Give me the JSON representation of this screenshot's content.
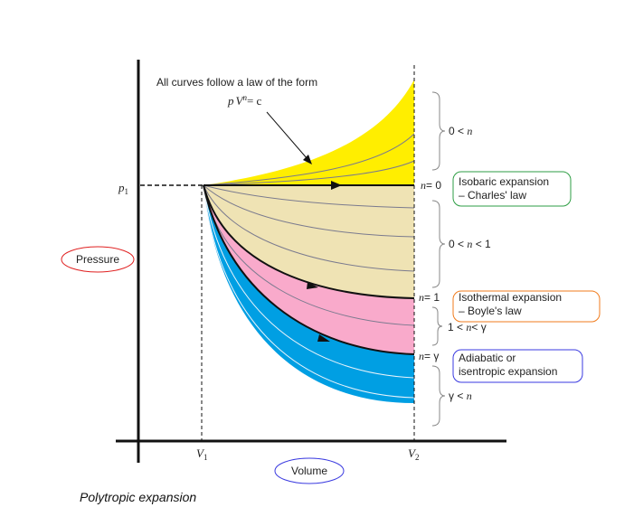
{
  "caption": "Polytropic expansion",
  "law_note": {
    "line1": "All curves follow a law of the form",
    "formula_p": "p",
    "formula_V": "V",
    "formula_exp": "n",
    "formula_eq": "= c"
  },
  "axes": {
    "y_label": "Pressure",
    "x_label": "Volume",
    "p1": {
      "base": "p",
      "sub": "1"
    },
    "v1": {
      "base": "V",
      "sub": "1"
    },
    "v2": {
      "base": "V",
      "sub": "2"
    }
  },
  "exponent_labels": {
    "n0": {
      "var": "n",
      "rest": "= 0"
    },
    "n1": {
      "var": "n",
      "rest": "= 1"
    },
    "ngamma": {
      "var": "n",
      "rest": "= γ"
    }
  },
  "ranges": {
    "r1": {
      "a": "0 < ",
      "var": "n",
      "b": ""
    },
    "r2": {
      "a": "0 < ",
      "var": "n",
      "b": " < 1"
    },
    "r3": {
      "a": "1 < ",
      "var": "n",
      "b": "< γ"
    },
    "r4": {
      "a": "γ < ",
      "var": "n",
      "b": ""
    }
  },
  "boxes": {
    "isobaric": {
      "line1": "Isobaric expansion",
      "line2": "– Charles' law",
      "color": "#2e9e44"
    },
    "isothermal": {
      "line1": "Isothermal expansion",
      "line2": "– Boyle's law",
      "color": "#f07b1c"
    },
    "adiabatic": {
      "line1": "Adiabatic or",
      "line2": "isentropic expansion",
      "color": "#3a3ae0"
    },
    "pressure_color": "#e02020",
    "volume_color": "#3a3ae0"
  },
  "fills": {
    "yellow": "#ffee00",
    "beige": "#efe3b4",
    "pink": "#f9aacb",
    "blue": "#009fe3"
  }
}
